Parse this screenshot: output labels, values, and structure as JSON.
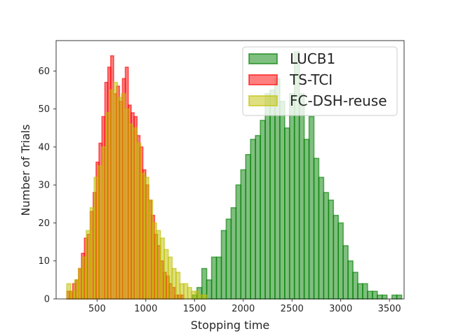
{
  "chart_data": {
    "type": "histogram",
    "xlabel": "Stopping time",
    "ylabel": "Number of Trials",
    "xlim": [
      80,
      3650
    ],
    "ylim": [
      0,
      68
    ],
    "xticks": [
      500,
      1000,
      1500,
      2000,
      2500,
      3000,
      3500
    ],
    "yticks": [
      0,
      10,
      20,
      30,
      40,
      50,
      60
    ],
    "legend_position": "top-right",
    "series": [
      {
        "name": "LUCB1",
        "color": "#008000",
        "bin_width": 50,
        "bin_starts": [
          1475,
          1525,
          1575,
          1625,
          1675,
          1725,
          1775,
          1825,
          1875,
          1925,
          1975,
          2025,
          2075,
          2125,
          2175,
          2225,
          2275,
          2325,
          2375,
          2425,
          2475,
          2525,
          2575,
          2625,
          2675,
          2725,
          2775,
          2825,
          2875,
          2925,
          2975,
          3025,
          3075,
          3125,
          3175,
          3225,
          3275,
          3325,
          3375,
          3425,
          3475,
          3525,
          3575
        ],
        "values": [
          1,
          3,
          8,
          5,
          11,
          11,
          18,
          21,
          24,
          30,
          34,
          38,
          42,
          43,
          47,
          54,
          55,
          58,
          52,
          45,
          54,
          65,
          54,
          42,
          48,
          37,
          32,
          28,
          26,
          22,
          20,
          14,
          10,
          7,
          4,
          4,
          2,
          2,
          1,
          1,
          0,
          1,
          1
        ]
      },
      {
        "name": "TS-TCI",
        "color": "#ff0000",
        "bin_width": 30,
        "bin_starts": [
          190,
          220,
          250,
          280,
          310,
          340,
          370,
          400,
          430,
          460,
          490,
          520,
          550,
          580,
          610,
          640,
          670,
          700,
          730,
          760,
          790,
          820,
          850,
          880,
          910,
          940,
          970,
          1000,
          1030,
          1060,
          1090,
          1120,
          1150,
          1180,
          1210,
          1240,
          1270,
          1300,
          1330,
          1360
        ],
        "values": [
          2,
          2,
          4,
          5,
          8,
          12,
          16,
          17,
          23,
          28,
          36,
          41,
          48,
          57,
          61,
          64,
          54,
          56,
          52,
          58,
          61,
          51,
          49,
          48,
          43,
          40,
          34,
          30,
          26,
          22,
          17,
          14,
          10,
          7,
          6,
          4,
          3,
          1,
          1,
          1
        ]
      },
      {
        "name": "FC-DSH-reuse",
        "color": "#bfbf00",
        "bin_width": 40,
        "bin_starts": [
          190,
          230,
          270,
          310,
          350,
          390,
          430,
          470,
          510,
          550,
          590,
          630,
          670,
          710,
          750,
          790,
          830,
          870,
          910,
          950,
          990,
          1030,
          1070,
          1110,
          1150,
          1190,
          1230,
          1270,
          1310,
          1350,
          1390,
          1430,
          1470,
          1510,
          1550,
          1590
        ],
        "values": [
          4,
          2,
          5,
          8,
          11,
          18,
          24,
          32,
          35,
          40,
          49,
          55,
          57,
          53,
          54,
          50,
          46,
          45,
          41,
          33,
          32,
          26,
          20,
          18,
          16,
          13,
          11,
          8,
          7,
          4,
          4,
          3,
          2,
          2,
          1,
          1
        ]
      }
    ]
  }
}
